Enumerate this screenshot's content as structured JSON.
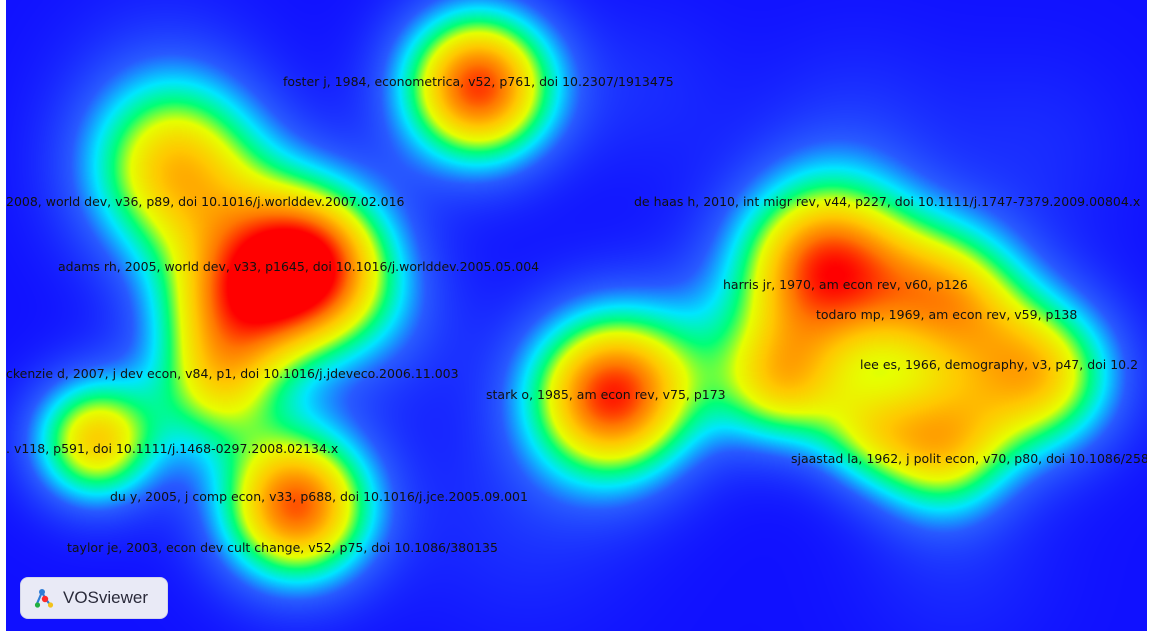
{
  "app": {
    "brand_label": "VOSviewer",
    "brand_icon": "vosviewer-logo-icon"
  },
  "view": {
    "type": "density-visualization",
    "palette": [
      "#1010ff",
      "#00e5ff",
      "#00ff80",
      "#fff000",
      "#ff9000",
      "#ff0000"
    ]
  },
  "labels": [
    {
      "id": "foster",
      "text": "foster j, 1984, econometrica, v52, p761, doi 10.2307/1913475"
    },
    {
      "id": "worlddev2008",
      "text": "2008, world dev, v36, p89, doi 10.1016/j.worlddev.2007.02.016"
    },
    {
      "id": "dehaas",
      "text": "de haas h, 2010, int migr rev, v44, p227, doi 10.1111/j.1747-7379.2009.00804.x"
    },
    {
      "id": "adams",
      "text": "adams rh, 2005, world dev, v33, p1645, doi 10.1016/j.worlddev.2005.05.004"
    },
    {
      "id": "harris",
      "text": "harris jr, 1970, am econ rev, v60, p126"
    },
    {
      "id": "todaro",
      "text": "todaro mp, 1969, am econ rev, v59, p138"
    },
    {
      "id": "mckenzie",
      "text": "ckenzie d, 2007, j dev econ, v84, p1, doi 10.1016/j.jdeveco.2006.11.003"
    },
    {
      "id": "lee",
      "text": "lee es, 1966, demography, v3, p47, doi 10.2"
    },
    {
      "id": "stark",
      "text": "stark o, 1985, am econ rev, v75, p173"
    },
    {
      "id": "wber",
      "text": ". v118, p591, doi 10.1111/j.1468-0297.2008.02134.x"
    },
    {
      "id": "sjaastad",
      "text": "sjaastad la, 1962, j polit econ, v70, p80, doi 10.1086/258"
    },
    {
      "id": "duy",
      "text": "du y, 2005, j comp econ, v33, p688, doi 10.1016/j.jce.2005.09.001"
    },
    {
      "id": "taylor",
      "text": "taylor je, 2003, econ dev cult change, v52, p75, doi 10.1086/380135"
    }
  ]
}
